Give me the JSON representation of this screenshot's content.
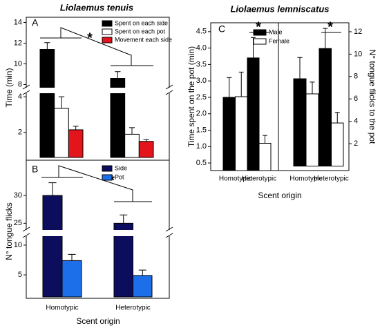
{
  "chart_data": [
    {
      "type": "bar",
      "title": "Liolaemus tenuis",
      "panel_label": "A",
      "ylabel": "Time (min)",
      "ylim": [
        0.6,
        14.5
      ],
      "ybreak": [
        4.2,
        7.7
      ],
      "yticks": [
        2,
        4,
        8,
        10,
        12,
        14
      ],
      "series": [
        {
          "name": "Spent on each side",
          "color": "#000000",
          "values": [
            11.4,
            8.6
          ],
          "errors": [
            0.65,
            0.65
          ]
        },
        {
          "name": "Spent on each pot",
          "color": "#ffffff",
          "values": [
            3.35,
            1.9
          ],
          "errors": [
            0.65,
            0.37
          ]
        },
        {
          "name": "Movement each side",
          "color": "#e3141b",
          "values": [
            2.15,
            1.5
          ],
          "errors": [
            0.2,
            0.1
          ]
        }
      ],
      "annotations": [
        "*"
      ]
    },
    {
      "type": "bar",
      "panel_label": "B",
      "ylabel": "N° tongue flicks",
      "xlabel": "Scent origin",
      "categories": [
        "Homotypic",
        "Heterotypic"
      ],
      "ylim": [
        1.3,
        35.6
      ],
      "ybreak": [
        11.5,
        23.8
      ],
      "yticks": [
        5,
        10,
        25,
        30
      ],
      "series": [
        {
          "name": "Side",
          "color": "#0d0d5e",
          "values": [
            30.0,
            25.0
          ],
          "errors": [
            2.3,
            1.5
          ]
        },
        {
          "name": "Pot",
          "color": "#1c6fe9",
          "values": [
            7.4,
            4.9
          ],
          "errors": [
            1.05,
            0.9
          ]
        }
      ],
      "annotations": [
        "*"
      ]
    },
    {
      "type": "bar",
      "title": "Liolaemus lemniscatus",
      "panel_label": "C",
      "ylabel": "Time spent on the pot (min)",
      "xlabel": "Scent origin",
      "categories": [
        "Homotypic",
        "Heterotypic"
      ],
      "ylim": [
        0.27,
        4.77
      ],
      "yticks": [
        0.5,
        {
          "value": 1,
          "label": "1.0"
        },
        1.5,
        {
          "value": 2,
          "label": "2.0"
        },
        2.5,
        {
          "value": 3,
          "label": "3.0"
        },
        3.5,
        {
          "value": 4,
          "label": "4.0"
        },
        4.5
      ],
      "series": [
        {
          "name": "Male",
          "color": "#000000",
          "values": [
            2.5,
            3.7
          ],
          "errors": [
            0.6,
            0.62
          ]
        },
        {
          "name": "Female",
          "color": "#ffffff",
          "values": [
            2.52,
            1.1
          ],
          "errors": [
            0.75,
            0.24
          ]
        }
      ],
      "annotations": [
        "*"
      ]
    },
    {
      "type": "bar",
      "y2label": "N° tongue flicks to the pot",
      "categories": [
        "Homotypic",
        "Heterotypic"
      ],
      "y2lim": [
        -0.4,
        12.8
      ],
      "y2ticks": [
        2,
        4,
        6,
        8,
        10,
        12
      ],
      "series": [
        {
          "color": "#000000",
          "axis": "y2",
          "values": [
            7.8,
            10.5
          ],
          "errors": [
            1.9,
            1.8
          ]
        },
        {
          "color": "#ffffff",
          "axis": "y2",
          "values": [
            6.45,
            3.85
          ],
          "errors": [
            1.05,
            0.95
          ]
        }
      ],
      "annotations": [
        "*"
      ]
    }
  ]
}
